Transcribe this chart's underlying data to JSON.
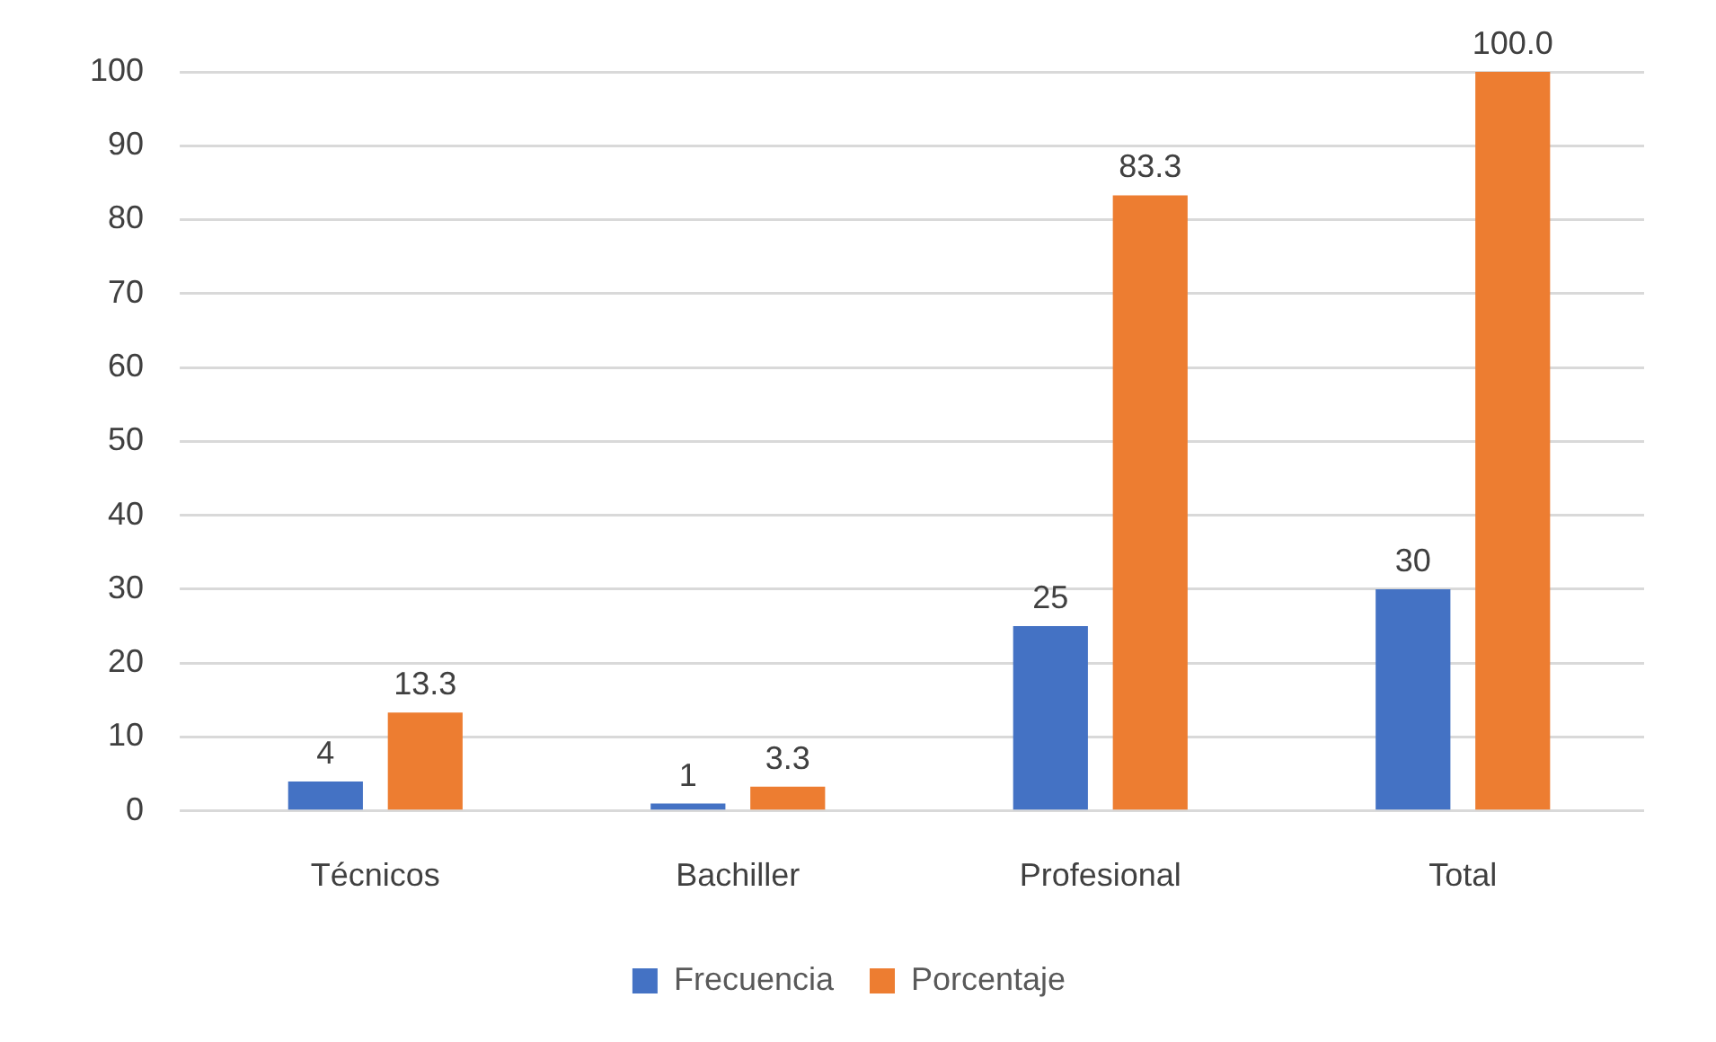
{
  "chart_data": {
    "type": "bar",
    "categories": [
      "Técnicos",
      "Bachiller",
      "Profesional",
      "Total"
    ],
    "series": [
      {
        "name": "Frecuencia",
        "color": "#4472c4",
        "values": [
          4,
          1,
          25,
          30
        ]
      },
      {
        "name": "Porcentaje",
        "color": "#ed7d31",
        "values": [
          13.3,
          3.3,
          83.3,
          100.0
        ]
      }
    ],
    "value_labels": [
      [
        "4",
        "1",
        "25",
        "30"
      ],
      [
        "13.3",
        "3.3",
        "83.3",
        "100.0"
      ]
    ],
    "ylim": [
      0,
      100
    ],
    "yticks": [
      0,
      10,
      20,
      30,
      40,
      50,
      60,
      70,
      80,
      90,
      100
    ],
    "grid": "y",
    "legend": "bottom"
  }
}
